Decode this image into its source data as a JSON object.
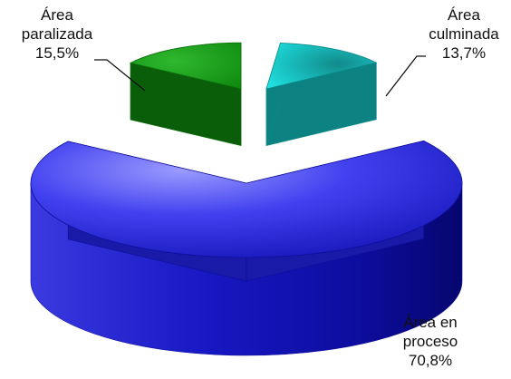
{
  "chart_data": {
    "type": "pie",
    "title": "",
    "slices": [
      {
        "label_lines": [
          "Área",
          "paralizada"
        ],
        "percent_label": "15,5%",
        "value": 15.5,
        "color": "#1c9a1c"
      },
      {
        "label_lines": [
          "Área",
          "culminada"
        ],
        "percent_label": "13,7%",
        "value": 13.7,
        "color": "#17c9c9"
      },
      {
        "label_lines": [
          "Área en",
          "proceso"
        ],
        "percent_label": "70,8%",
        "value": 70.8,
        "color": "#2a2ae0"
      }
    ],
    "legend": "none",
    "style": "3d-exploded"
  }
}
